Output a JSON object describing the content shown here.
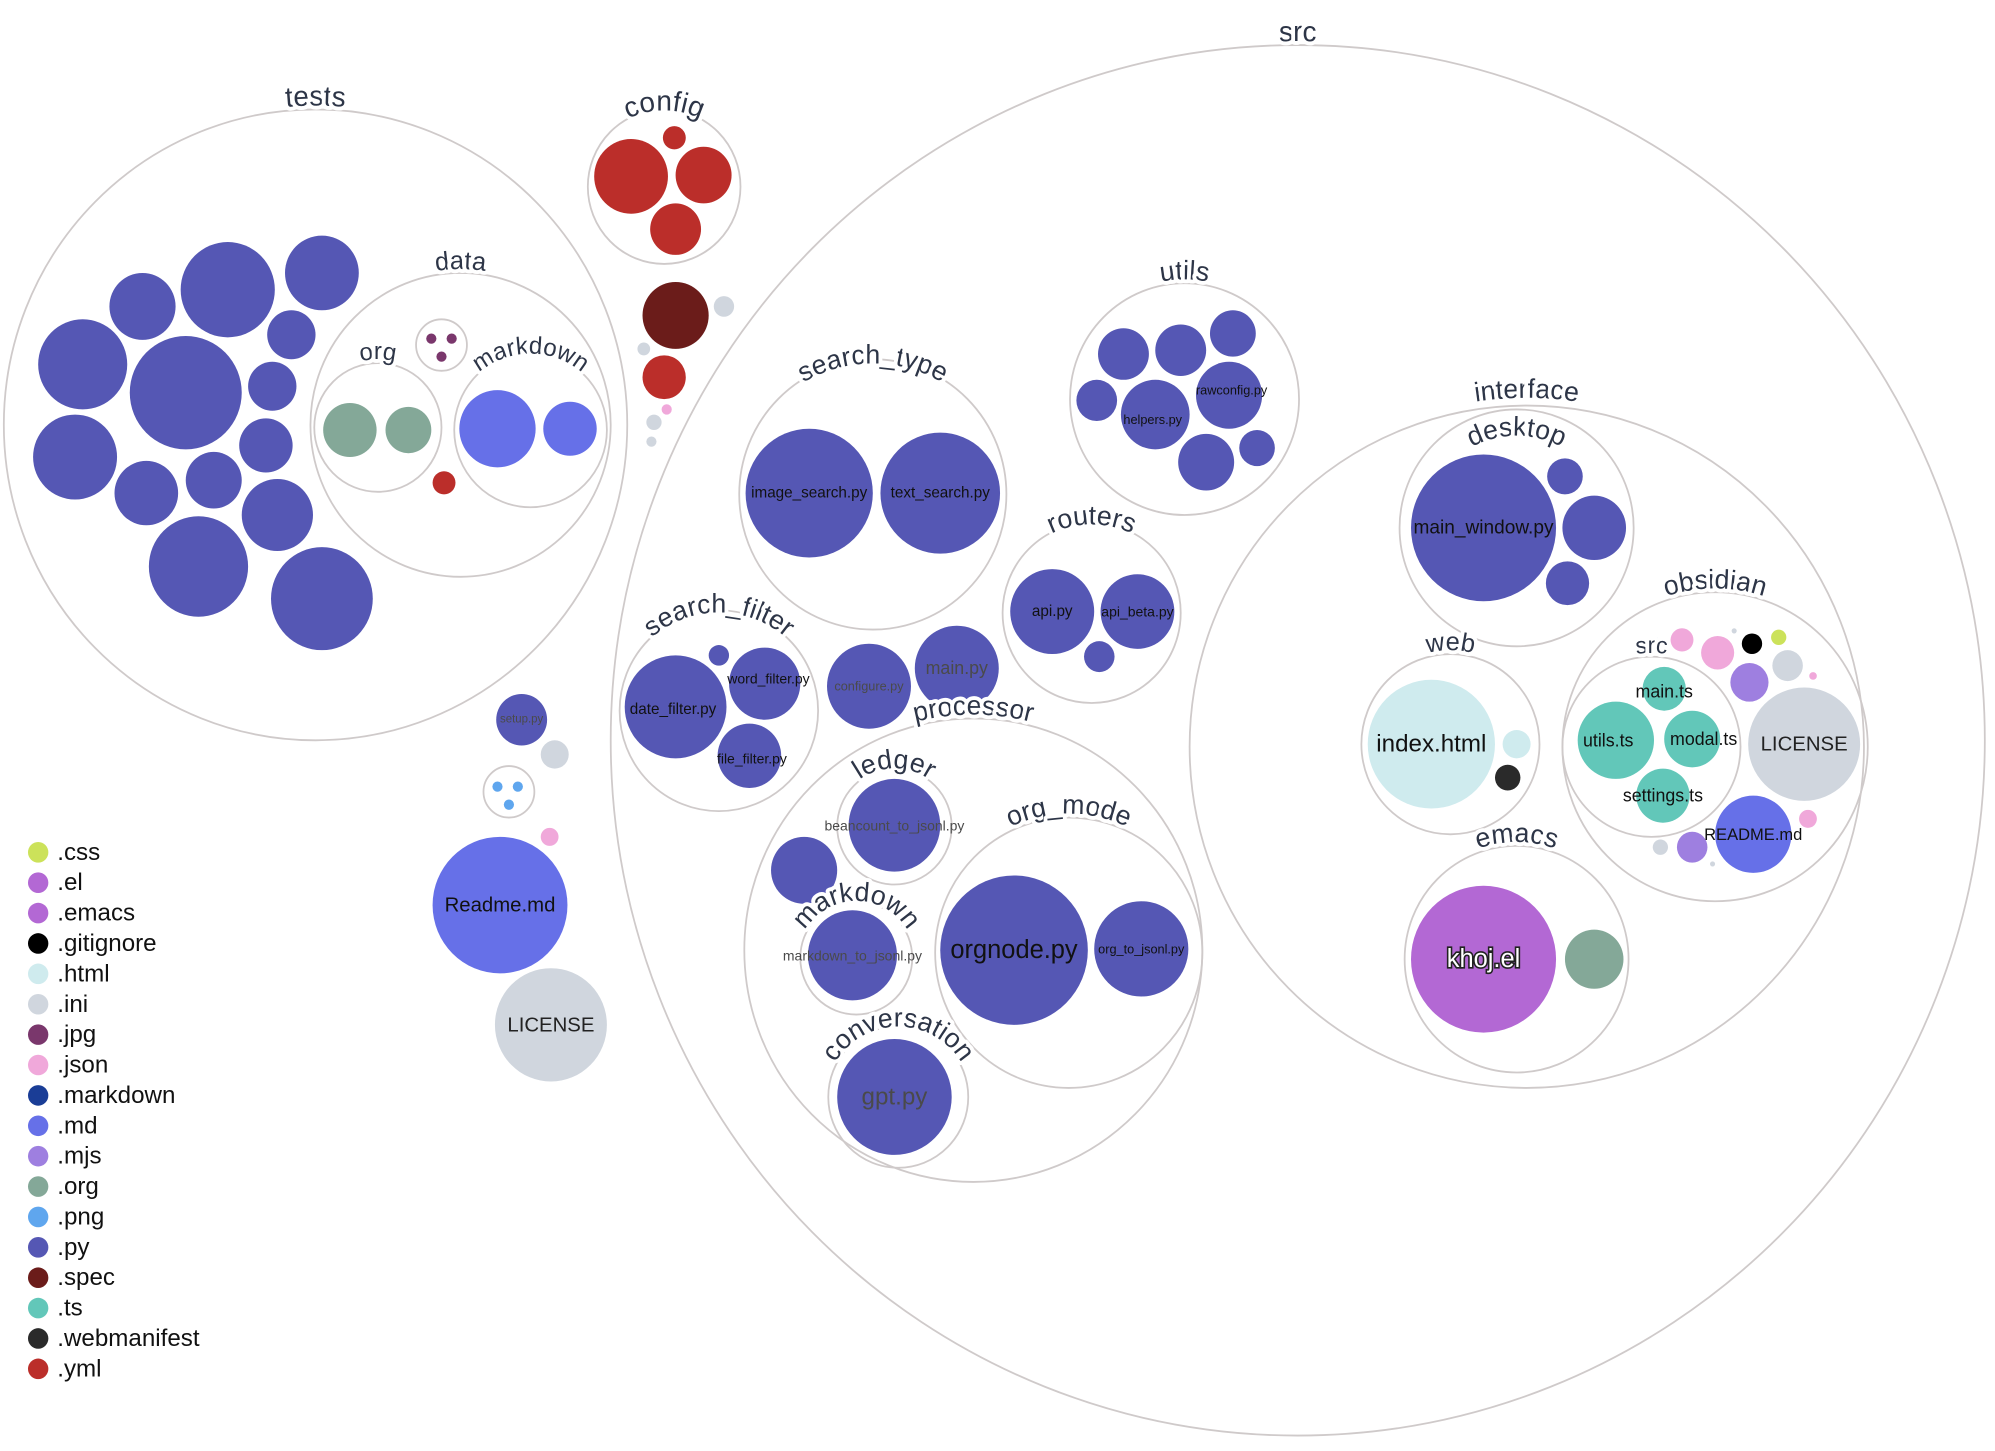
{
  "legend": [
    {
      "ext": ".css",
      "color": "#cce25a"
    },
    {
      "ext": ".el",
      "color": "#b368d4"
    },
    {
      "ext": ".emacs",
      "color": "#b368d4"
    },
    {
      "ext": ".gitignore",
      "color": "#000000"
    },
    {
      "ext": ".html",
      "color": "#cfebee"
    },
    {
      "ext": ".ini",
      "color": "#d0d6de"
    },
    {
      "ext": ".jpg",
      "color": "#7a376c"
    },
    {
      "ext": ".json",
      "color": "#f0a8da"
    },
    {
      "ext": ".markdown",
      "color": "#1a3d96"
    },
    {
      "ext": ".md",
      "color": "#6670e8"
    },
    {
      "ext": ".mjs",
      "color": "#9e7fe0"
    },
    {
      "ext": ".org",
      "color": "#84a898"
    },
    {
      "ext": ".png",
      "color": "#5fa6ee"
    },
    {
      "ext": ".py",
      "color": "#5557b4"
    },
    {
      "ext": ".spec",
      "color": "#6b1c1a"
    },
    {
      "ext": ".ts",
      "color": "#62c7b9"
    },
    {
      "ext": ".webmanifest",
      "color": "#2a2a2a"
    },
    {
      "ext": ".yml",
      "color": "#bb2e2a"
    }
  ],
  "folders": [
    {
      "name": "tests"
    },
    {
      "name": "data"
    },
    {
      "name": "org"
    },
    {
      "name": "markdown"
    },
    {
      "name": ""
    },
    {
      "name": "config"
    },
    {
      "name": "src"
    },
    {
      "name": "search_type"
    },
    {
      "name": "utils"
    },
    {
      "name": "routers"
    },
    {
      "name": "search_filter"
    },
    {
      "name": "processor"
    },
    {
      "name": "ledger"
    },
    {
      "name": "markdown"
    },
    {
      "name": "org_mode"
    },
    {
      "name": "conversation"
    },
    {
      "name": "interface"
    },
    {
      "name": "desktop"
    },
    {
      "name": "web"
    },
    {
      "name": "obsidian"
    },
    {
      "name": "src"
    },
    {
      "name": "emacs"
    },
    {
      "name": ""
    }
  ],
  "files": [
    {
      "ext": ".py"
    },
    {
      "ext": ".py"
    },
    {
      "ext": ".py"
    },
    {
      "ext": ".py"
    },
    {
      "ext": ".py"
    },
    {
      "ext": ".py"
    },
    {
      "ext": ".py"
    },
    {
      "ext": ".py"
    },
    {
      "ext": ".py"
    },
    {
      "ext": ".py"
    },
    {
      "ext": ".py"
    },
    {
      "ext": ".py"
    },
    {
      "ext": ".py"
    },
    {
      "ext": ".py"
    },
    {
      "ext": ".org"
    },
    {
      "ext": ".org"
    },
    {
      "ext": ".md"
    },
    {
      "ext": ".md"
    },
    {
      "ext": ".jpg"
    },
    {
      "ext": ".jpg"
    },
    {
      "ext": ".jpg"
    },
    {
      "ext": ".yml"
    },
    {
      "ext": ".yml"
    },
    {
      "ext": ".yml"
    },
    {
      "ext": ".yml"
    },
    {
      "ext": ".yml"
    },
    {
      "ext": ".spec"
    },
    {
      "ext": ".ini"
    },
    {
      "ext": ".yml"
    },
    {
      "ext": ".ini"
    },
    {
      "ext": ".ini"
    },
    {
      "ext": ".ini"
    },
    {
      "ext": ".json"
    },
    {
      "ext": ".py",
      "label": "setup.py"
    },
    {
      "ext": ".ini"
    },
    {
      "ext": ".png"
    },
    {
      "ext": ".png"
    },
    {
      "ext": ".png"
    },
    {
      "ext": ".json"
    },
    {
      "ext": ".md",
      "label": "Readme.md"
    },
    {
      "ext": ".ini",
      "label": "LICENSE"
    },
    {
      "ext": ".py",
      "label": "image_search.py"
    },
    {
      "ext": ".py",
      "label": "text_search.py"
    },
    {
      "ext": ".py"
    },
    {
      "ext": ".py"
    },
    {
      "ext": ".py"
    },
    {
      "ext": ".py"
    },
    {
      "ext": ".py",
      "label": "helpers.py"
    },
    {
      "ext": ".py",
      "label": "rawconfig.py"
    },
    {
      "ext": ".py"
    },
    {
      "ext": ".py"
    },
    {
      "ext": ".py",
      "label": "api.py"
    },
    {
      "ext": ".py",
      "label": "api_beta.py"
    },
    {
      "ext": ".py"
    },
    {
      "ext": ".py",
      "label": "date_filter.py"
    },
    {
      "ext": ".py",
      "label": "word_filter.py"
    },
    {
      "ext": ".py",
      "label": "file_filter.py"
    },
    {
      "ext": ".py"
    },
    {
      "ext": ".py",
      "label": "configure.py"
    },
    {
      "ext": ".py",
      "label": "main.py"
    },
    {
      "ext": ".py"
    },
    {
      "ext": ".py",
      "label": "beancount_to_jsonl.py"
    },
    {
      "ext": ".py",
      "label": "markdown_to_jsonl.py"
    },
    {
      "ext": ".py",
      "label": "orgnode.py"
    },
    {
      "ext": ".py",
      "label": "org_to_jsonl.py"
    },
    {
      "ext": ".py",
      "label": "gpt.py"
    },
    {
      "ext": ".py",
      "label": "main_window.py"
    },
    {
      "ext": ".py"
    },
    {
      "ext": ".py"
    },
    {
      "ext": ".py"
    },
    {
      "ext": ".html",
      "label": "index.html"
    },
    {
      "ext": ".html"
    },
    {
      "ext": ".webmanifest"
    },
    {
      "ext": ".ts",
      "label": "main.ts"
    },
    {
      "ext": ".ts",
      "label": "utils.ts"
    },
    {
      "ext": ".ts",
      "label": "modal.ts"
    },
    {
      "ext": ".ts",
      "label": "settings.ts"
    },
    {
      "ext": ".ini",
      "label": "LICENSE"
    },
    {
      "ext": ".md",
      "label": "README.md"
    },
    {
      "ext": ".png"
    },
    {
      "ext": ".json"
    },
    {
      "ext": ".json"
    },
    {
      "ext": ".ini"
    },
    {
      "ext": ".gitignore"
    },
    {
      "ext": ".css"
    },
    {
      "ext": ".mjs"
    },
    {
      "ext": ".ini"
    },
    {
      "ext": ".json"
    },
    {
      "ext": ".json"
    },
    {
      "ext": ".ini"
    },
    {
      "ext": ".mjs"
    },
    {
      "ext": ".ini"
    },
    {
      "ext": ".el",
      "label": "khoj.el"
    },
    {
      "ext": ".org"
    }
  ]
}
